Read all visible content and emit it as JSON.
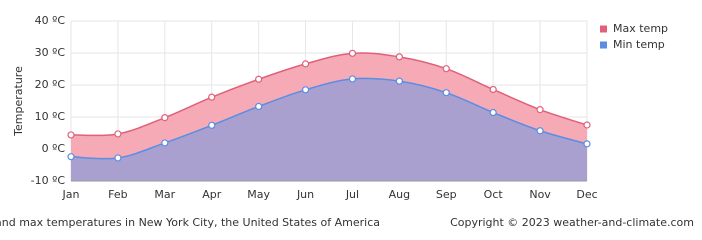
{
  "chart_data": {
    "type": "area",
    "y_label": "Temperature",
    "categories": [
      "Jan",
      "Feb",
      "Mar",
      "Apr",
      "May",
      "Jun",
      "Jul",
      "Aug",
      "Sep",
      "Oct",
      "Nov",
      "Dec"
    ],
    "series": [
      {
        "name": "Max temp",
        "color": "#e0607a",
        "fill": "#f5aab6",
        "values": [
          4.4,
          4.7,
          9.8,
          16.2,
          21.8,
          26.6,
          29.9,
          28.8,
          25.1,
          18.6,
          12.3,
          7.5
        ]
      },
      {
        "name": "Min temp",
        "color": "#5b8de3",
        "fill": "#a9a0d0",
        "values": [
          -2.4,
          -2.8,
          1.9,
          7.4,
          13.3,
          18.5,
          21.9,
          21.2,
          17.6,
          11.4,
          5.7,
          1.6
        ]
      }
    ],
    "ylim": [
      -10,
      40
    ],
    "yticks": [
      {
        "value": -10,
        "label": "-10 ºC"
      },
      {
        "value": 0,
        "label": "0 ºC"
      },
      {
        "value": 10,
        "label": "10 ºC"
      },
      {
        "value": 20,
        "label": "20 ºC"
      },
      {
        "value": 30,
        "label": "30 ºC"
      },
      {
        "value": 40,
        "label": "40 ºC"
      }
    ],
    "grid": true,
    "legend": "top-right",
    "caption": "Average min and max temperatures in New York City, the United States of America",
    "copyright": "Copyright © 2023  weather-and-climate.com"
  }
}
